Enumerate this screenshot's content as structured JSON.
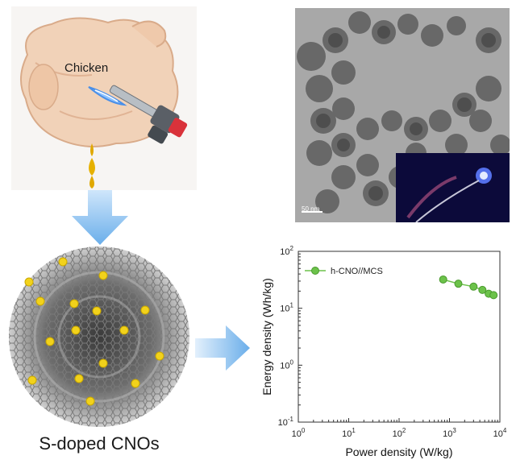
{
  "chicken_label": "Chicken",
  "cno_label": "S-doped CNOs",
  "tem_scale_label": "50 nm",
  "colors": {
    "arrow": "#7fb8ea",
    "sulfur": "#f2d21b",
    "carbon": "#9a9a9a",
    "series": "#6cc24a",
    "flame": "#4a8fe8",
    "oil": "#e0a800"
  },
  "icons": [
    "chicken-icon",
    "torch-icon",
    "flame-icon",
    "oil-drop-icon",
    "down-arrow-icon",
    "right-arrow-icon",
    "carbon-onion-icon"
  ],
  "chart_data": {
    "type": "line",
    "title": "",
    "xlabel": "Power density (W/kg)",
    "ylabel": "Energy density (Wh/kg)",
    "xscale": "log",
    "yscale": "log",
    "xlim": [
      1,
      10000
    ],
    "ylim": [
      0.1,
      100
    ],
    "x_ticks": [
      "10^0",
      "10^1",
      "10^2",
      "10^3",
      "10^4"
    ],
    "y_ticks": [
      "10^-1",
      "10^0",
      "10^1",
      "10^2"
    ],
    "legend_position": "top-left",
    "grid": true,
    "series": [
      {
        "name": "h-CNO//MCS",
        "x": [
          750,
          1500,
          3000,
          4500,
          6000,
          7500
        ],
        "y": [
          32,
          27,
          24,
          21,
          18,
          17
        ]
      }
    ]
  }
}
